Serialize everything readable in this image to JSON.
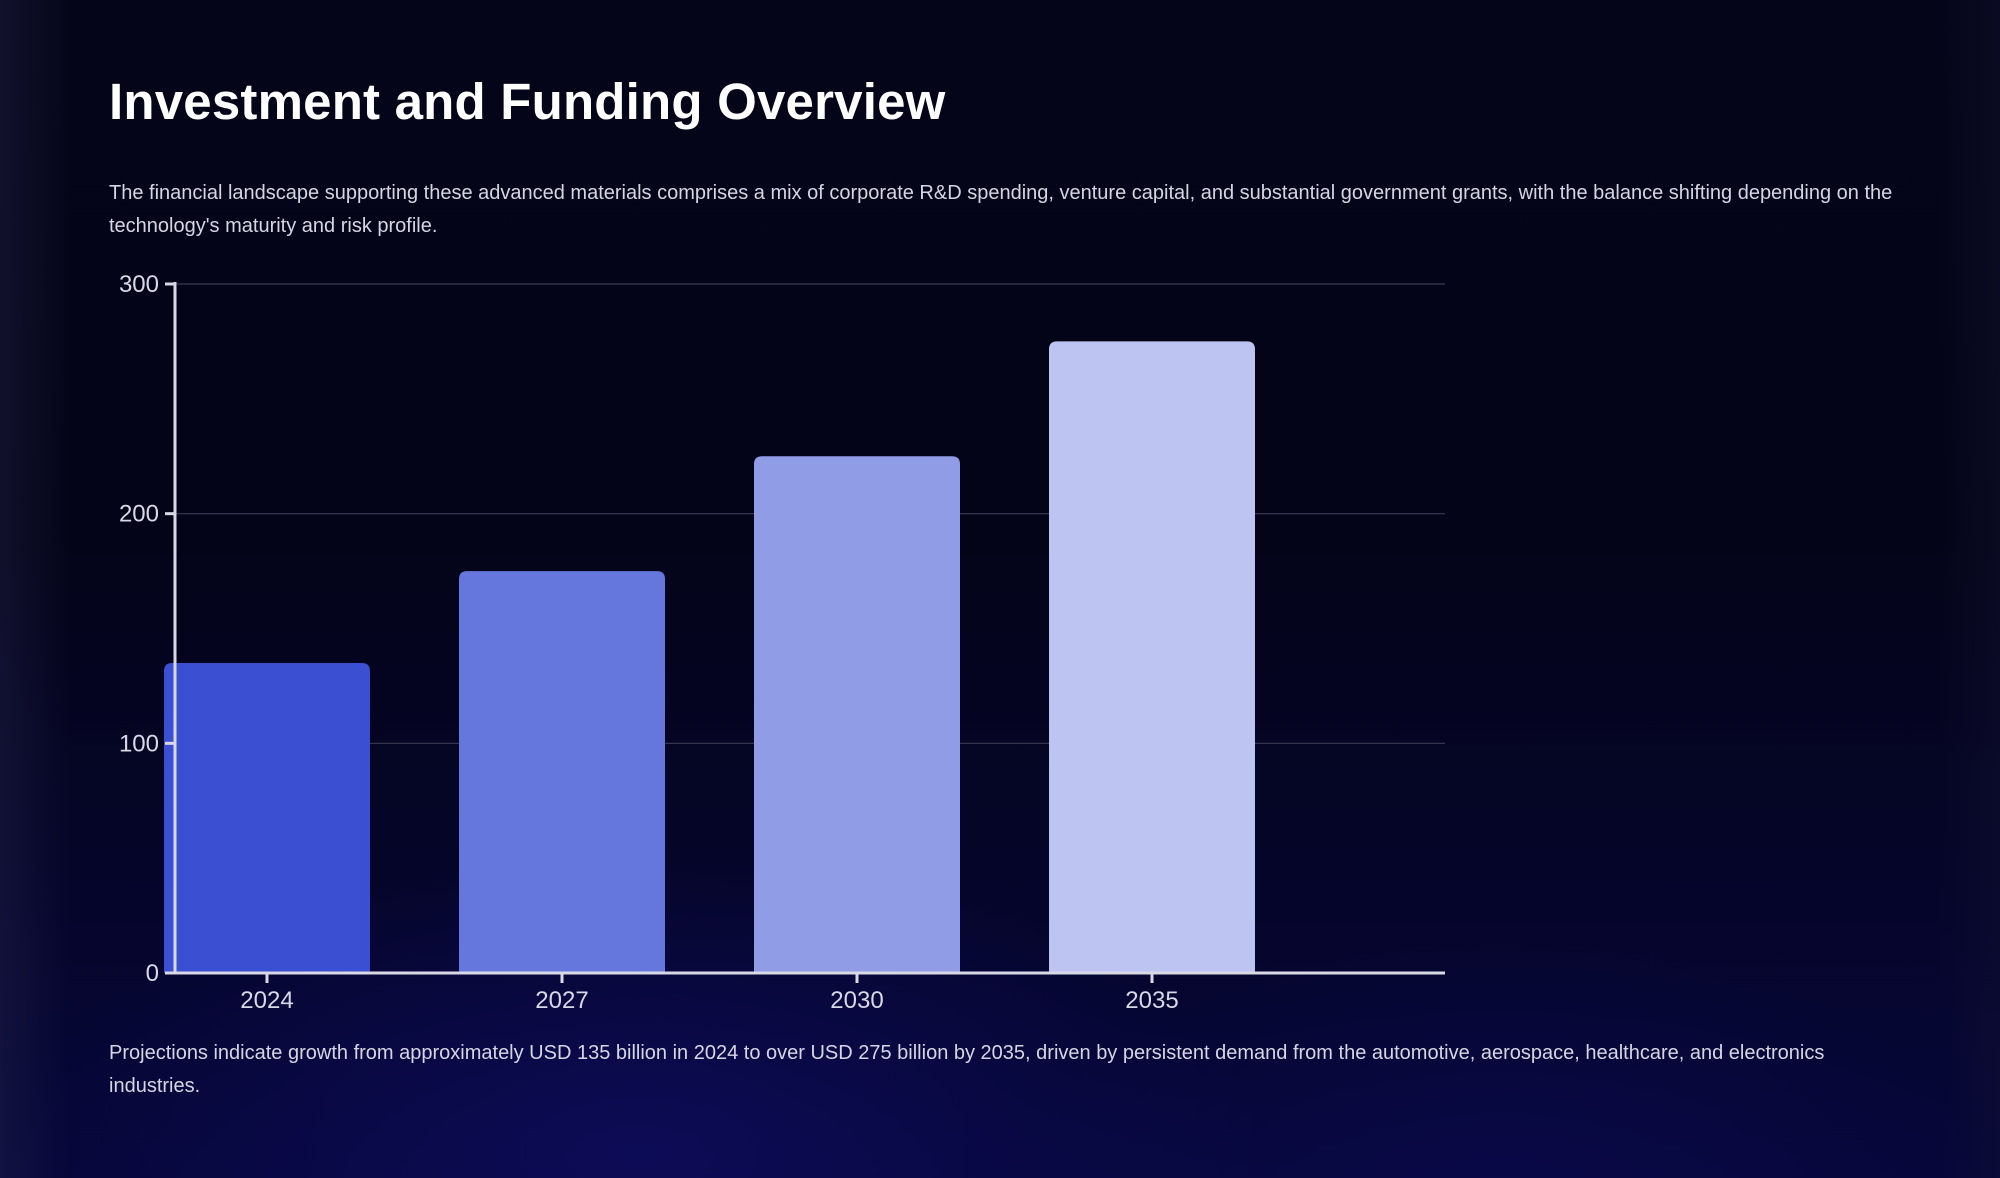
{
  "slide": {
    "title": "Investment and Funding Overview",
    "intro": "The financial landscape supporting these advanced materials comprises a mix of corporate R&D spending, venture capital, and substantial government grants, with the balance shifting depending on the technology's maturity and risk profile.",
    "note": "Projections indicate growth from approximately USD 135 billion in 2024 to over USD 275 billion by 2035, driven by persistent demand from the automotive, aerospace, healthcare, and electronics industries."
  },
  "chart_data": {
    "type": "bar",
    "categories": [
      "2024",
      "2027",
      "2030",
      "2035"
    ],
    "values": [
      135,
      175,
      225,
      275
    ],
    "colors": [
      "#3a4fd2",
      "#6577dd",
      "#909ce6",
      "#bec4f1"
    ],
    "ylim": [
      0,
      300
    ],
    "yticks": [
      0,
      100,
      200,
      300
    ],
    "grid": true,
    "legend": "none",
    "axis_color": "#d8d8e6",
    "grid_color": "#3a3a55"
  }
}
